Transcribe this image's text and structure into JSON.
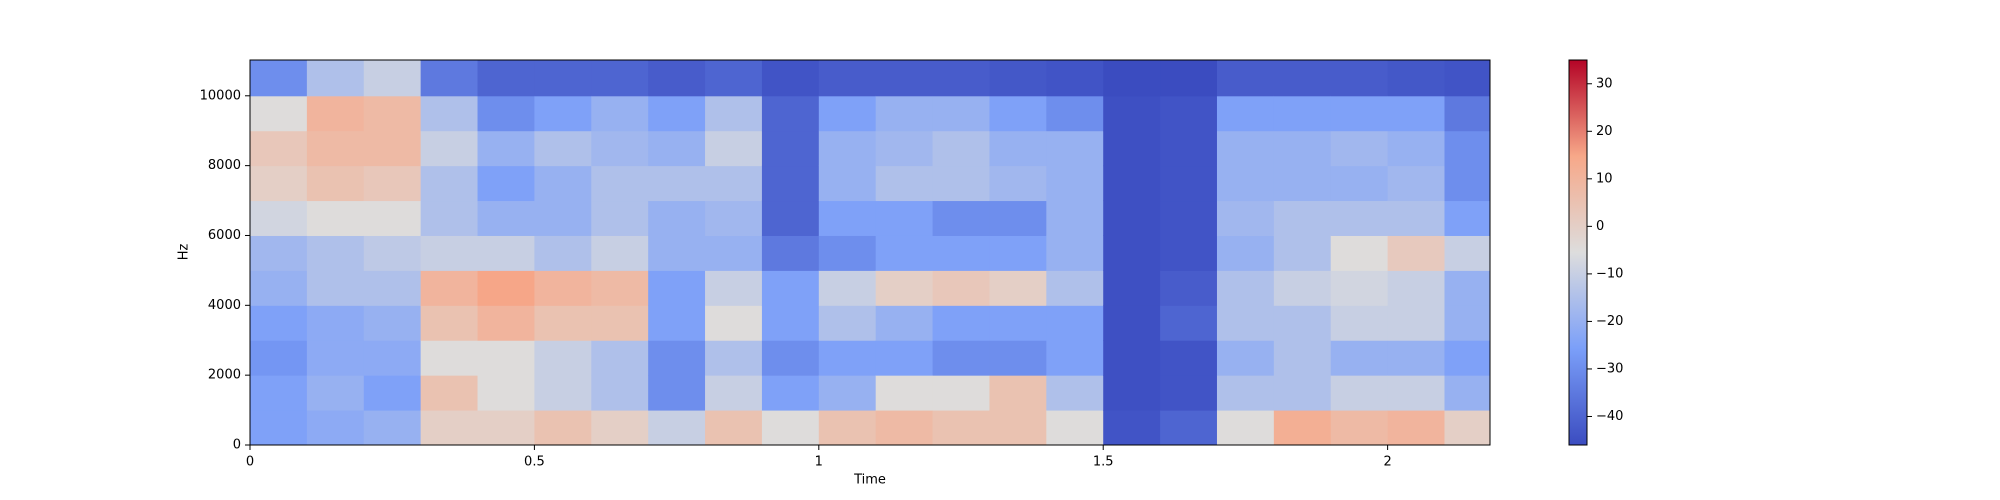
{
  "chart_data": {
    "type": "heatmap",
    "xlabel": "Time",
    "ylabel": "Hz",
    "colormap": "coolwarm",
    "x_bins": [
      0,
      0.1,
      0.2,
      0.3,
      0.4,
      0.5,
      0.6,
      0.7,
      0.8,
      0.9,
      1.0,
      1.1,
      1.2,
      1.3,
      1.4,
      1.5,
      1.6,
      1.7,
      1.8,
      1.9,
      2.0,
      2.1,
      2.18
    ],
    "y_bins": [
      0,
      1000,
      2000,
      3000,
      4000,
      5000,
      6000,
      7000,
      8000,
      9000,
      10000,
      11025
    ],
    "z": [
      [
        -25,
        -25,
        -28,
        -25,
        -20,
        -18,
        -8,
        0,
        3,
        -5,
        -30
      ],
      [
        -22,
        -20,
        -22,
        -22,
        -15,
        -15,
        -5,
        5,
        8,
        10,
        -15
      ],
      [
        -20,
        -25,
        -22,
        -20,
        -15,
        -12,
        -5,
        3,
        8,
        8,
        -10
      ],
      [
        0,
        5,
        -5,
        5,
        10,
        -10,
        -15,
        -15,
        -10,
        -15,
        -35
      ],
      [
        0,
        -5,
        -5,
        10,
        15,
        -10,
        -20,
        -25,
        -20,
        -30,
        -40
      ],
      [
        5,
        -10,
        -10,
        5,
        10,
        -15,
        -20,
        -20,
        -15,
        -25,
        -40
      ],
      [
        0,
        -15,
        -15,
        5,
        8,
        -10,
        -15,
        -15,
        -18,
        -20,
        -40
      ],
      [
        -10,
        -30,
        -30,
        -25,
        -25,
        -20,
        -20,
        -15,
        -20,
        -25,
        -42
      ],
      [
        5,
        -10,
        -15,
        -5,
        -10,
        -20,
        -18,
        -15,
        -10,
        -15,
        -40
      ],
      [
        -5,
        -25,
        -30,
        -25,
        -25,
        -35,
        -40,
        -40,
        -40,
        -40,
        -44
      ],
      [
        5,
        -20,
        -25,
        -15,
        -10,
        -30,
        -25,
        -20,
        -20,
        -25,
        -42
      ],
      [
        8,
        -5,
        -25,
        -20,
        0,
        -25,
        -25,
        -15,
        -18,
        -20,
        -42
      ],
      [
        5,
        -5,
        -30,
        -25,
        3,
        -25,
        -30,
        -15,
        -15,
        -20,
        -42
      ],
      [
        5,
        5,
        -30,
        -25,
        0,
        -25,
        -30,
        -18,
        -20,
        -25,
        -43
      ],
      [
        -5,
        -15,
        -25,
        -25,
        -15,
        -20,
        -20,
        -20,
        -20,
        -30,
        -44
      ],
      [
        -44,
        -45,
        -45,
        -45,
        -45,
        -45,
        -45,
        -45,
        -45,
        -45,
        -46
      ],
      [
        -40,
        -44,
        -44,
        -40,
        -42,
        -44,
        -44,
        -44,
        -44,
        -44,
        -46
      ],
      [
        -5,
        -15,
        -20,
        -15,
        -15,
        -20,
        -18,
        -20,
        -20,
        -25,
        -42
      ],
      [
        12,
        -15,
        -15,
        -15,
        -10,
        -15,
        -15,
        -20,
        -20,
        -25,
        -42
      ],
      [
        8,
        -10,
        -20,
        -10,
        -8,
        -5,
        -15,
        -20,
        -18,
        -25,
        -42
      ],
      [
        10,
        -10,
        -20,
        -10,
        -10,
        2,
        -15,
        -18,
        -20,
        -25,
        -43
      ],
      [
        0,
        -20,
        -25,
        -20,
        -20,
        -10,
        -25,
        -30,
        -30,
        -35,
        -44
      ]
    ],
    "xlim": [
      0,
      2.18
    ],
    "xticks": [
      0,
      0.5,
      1,
      1.5,
      2
    ],
    "ylim": [
      0,
      11025
    ],
    "yticks": [
      0,
      2000,
      4000,
      6000,
      8000,
      10000
    ],
    "zlim": [
      -46,
      35
    ],
    "zticks": [
      {
        "value": -40,
        "label": "−40"
      },
      {
        "value": -30,
        "label": "−30"
      },
      {
        "value": -20,
        "label": "−20"
      },
      {
        "value": -10,
        "label": "−10"
      },
      0,
      10,
      20,
      30
    ]
  }
}
